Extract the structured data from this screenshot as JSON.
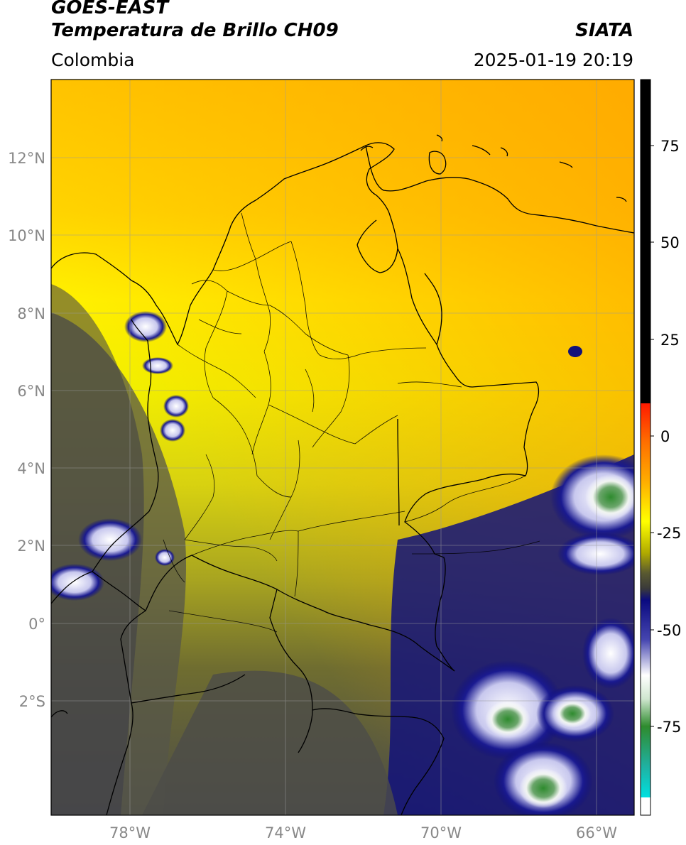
{
  "header": {
    "satellite": "GOES-EAST",
    "product": "Temperatura de Brillo CH09",
    "region": "Colombia",
    "agency": "SIATA",
    "datetime": "2025-01-19 20:19"
  },
  "axes": {
    "lat_ticks": [
      "12°N",
      "10°N",
      "8°N",
      "6°N",
      "4°N",
      "2°N",
      "0°",
      "2°S"
    ],
    "lon_ticks": [
      "78°W",
      "74°W",
      "70°W",
      "66°W"
    ]
  },
  "colorbar": {
    "ticks": [
      "75",
      "50",
      "25",
      "0",
      "-25",
      "-50",
      "-75"
    ],
    "colors": {
      "black": "#000000",
      "red": "#ff1a00",
      "orange": "#ff8c00",
      "yellow": "#ffff00",
      "olive": "#8c8c00",
      "gray": "#4a4a4a",
      "navy": "#0a0a80",
      "white": "#ffffff",
      "green": "#2e8b2e",
      "cyan": "#00e0e0"
    }
  },
  "map": {
    "grid": true,
    "features": [
      "country-borders",
      "department-borders",
      "coastline"
    ]
  }
}
